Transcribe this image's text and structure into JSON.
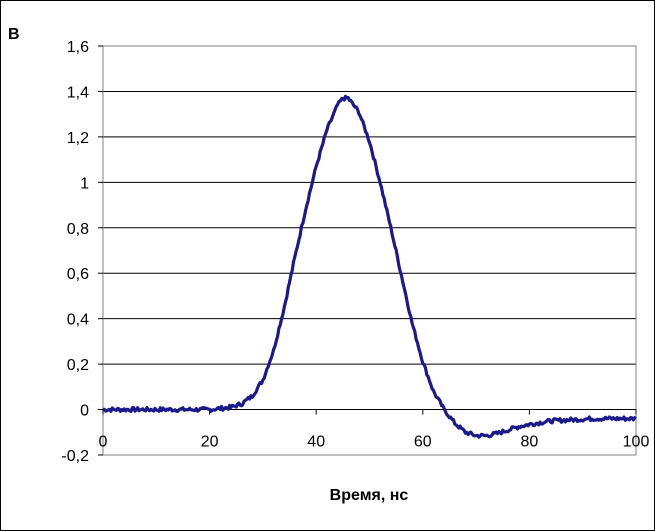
{
  "chart_data": {
    "type": "line",
    "title": "",
    "ylabel": "В",
    "xlabel": "Время, нс",
    "xlim": [
      0,
      100
    ],
    "ylim": [
      -0.2,
      1.6
    ],
    "x_ticks": [
      0,
      20,
      40,
      60,
      80,
      100
    ],
    "x_tick_labels": [
      "0",
      "20",
      "40",
      "60",
      "80",
      "100"
    ],
    "y_ticks": [
      -0.2,
      0,
      0.2,
      0.4,
      0.6,
      0.8,
      1.0,
      1.2,
      1.4,
      1.6
    ],
    "y_tick_labels": [
      "-0,2",
      "0",
      "0,2",
      "0,4",
      "0,6",
      "0,8",
      "1",
      "1,2",
      "1,4",
      "1,6"
    ],
    "grid": "horizontal",
    "legend": "none",
    "colors": {
      "series": "#1a1a8c",
      "grid": "#000000",
      "plot_border": "#808080"
    },
    "series": [
      {
        "points": [
          [
            0,
            0.0
          ],
          [
            5,
            0.0
          ],
          [
            10,
            0.0
          ],
          [
            15,
            0.0
          ],
          [
            20,
            0.0
          ],
          [
            22,
            0.005
          ],
          [
            24,
            0.01
          ],
          [
            26,
            0.025
          ],
          [
            28,
            0.06
          ],
          [
            30,
            0.13
          ],
          [
            32,
            0.26
          ],
          [
            34,
            0.45
          ],
          [
            36,
            0.67
          ],
          [
            38,
            0.88
          ],
          [
            40,
            1.07
          ],
          [
            42,
            1.23
          ],
          [
            44,
            1.34
          ],
          [
            45,
            1.37
          ],
          [
            46,
            1.37
          ],
          [
            48,
            1.31
          ],
          [
            50,
            1.18
          ],
          [
            52,
            1.0
          ],
          [
            54,
            0.8
          ],
          [
            56,
            0.59
          ],
          [
            58,
            0.38
          ],
          [
            60,
            0.21
          ],
          [
            62,
            0.08
          ],
          [
            64,
            0.0
          ],
          [
            66,
            -0.06
          ],
          [
            68,
            -0.1
          ],
          [
            70,
            -0.115
          ],
          [
            72,
            -0.115
          ],
          [
            74,
            -0.105
          ],
          [
            76,
            -0.09
          ],
          [
            78,
            -0.075
          ],
          [
            80,
            -0.065
          ],
          [
            84,
            -0.05
          ],
          [
            88,
            -0.045
          ],
          [
            92,
            -0.04
          ],
          [
            96,
            -0.04
          ],
          [
            100,
            -0.04
          ]
        ]
      }
    ]
  }
}
